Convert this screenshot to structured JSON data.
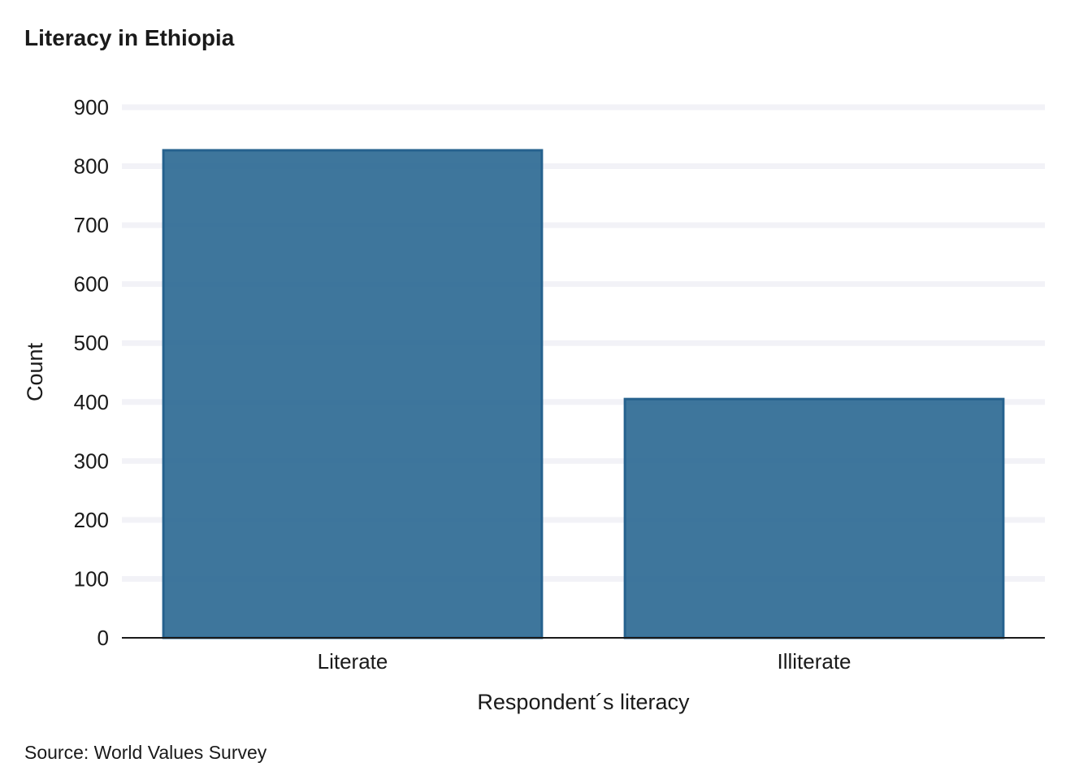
{
  "chart_data": {
    "type": "bar",
    "title": "Literacy in Ethiopia",
    "xlabel": "Respondent´s literacy",
    "ylabel": "Count",
    "caption": "Source: World Values Survey",
    "categories": [
      "Literate",
      "Illiterate"
    ],
    "values": [
      827,
      405
    ],
    "ylim": [
      0,
      900
    ],
    "yticks": [
      0,
      100,
      200,
      300,
      400,
      500,
      600,
      700,
      800,
      900
    ],
    "grid": "horizontal",
    "colors": {
      "bar_fill": "#2e6a94",
      "bar_stroke": "#26628e",
      "grid": "#f2f2f7",
      "axis": "#1a1a1a"
    }
  }
}
